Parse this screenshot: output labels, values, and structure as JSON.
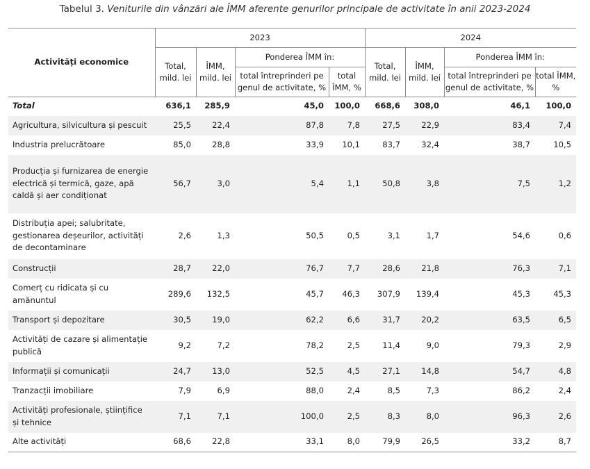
{
  "caption": {
    "prefix": "Tabelul 3. ",
    "title": "Veniturile din vânzări ale ÎMM aferente genurilor principale de activitate în anii 2023-2024"
  },
  "header": {
    "activity": "Activități economice",
    "year1": "2023",
    "year2": "2024",
    "total": "Total, mild. lei",
    "imm": "ÎMM, mild. lei",
    "share": "Ponderea ÎMM în:",
    "share_total_ent": "total întreprinderi pe genul de activitate, %",
    "share_total_imm": "total ÎMM, %"
  },
  "rows": [
    {
      "name": "Total",
      "v": [
        "636,1",
        "285,9",
        "45,0",
        "100,0",
        "668,6",
        "308,0",
        "46,1",
        "100,0"
      ]
    },
    {
      "name": "Agricultura, silvicultura și pescuit",
      "v": [
        "25,5",
        "22,4",
        "87,8",
        "7,8",
        "27,5",
        "22,9",
        "83,4",
        "7,4"
      ]
    },
    {
      "name": "Industria prelucrătoare",
      "v": [
        "85,0",
        "28,8",
        "33,9",
        "10,1",
        "83,7",
        "32,4",
        "38,7",
        "10,5"
      ]
    },
    {
      "name": "Producția și furnizarea de energie electrică și termică, gaze, apă caldă și aer condiționat",
      "v": [
        "56,7",
        "3,0",
        "5,4",
        "1,1",
        "50,8",
        "3,8",
        "7,5",
        "1,2"
      ]
    },
    {
      "name": "Distribuția apei; salubritate, gestionarea deșeurilor, activități de decontaminare",
      "v": [
        "2,6",
        "1,3",
        "50,5",
        "0,5",
        "3,1",
        "1,7",
        "54,6",
        "0,6"
      ]
    },
    {
      "name": "Construcții",
      "v": [
        "28,7",
        "22,0",
        "76,7",
        "7,7",
        "28,6",
        "21,8",
        "76,3",
        "7,1"
      ]
    },
    {
      "name": "Comerț cu ridicata și cu amănuntul",
      "v": [
        "289,6",
        "132,5",
        "45,7",
        "46,3",
        "307,9",
        "139,4",
        "45,3",
        "45,3"
      ]
    },
    {
      "name": "Transport și depozitare",
      "v": [
        "30,5",
        "19,0",
        "62,2",
        "6,6",
        "31,7",
        "20,2",
        "63,5",
        "6,5"
      ]
    },
    {
      "name": "Activități de cazare și alimentație publică",
      "v": [
        "9,2",
        "7,2",
        "78,2",
        "2,5",
        "11,4",
        "9,0",
        "79,3",
        "2,9"
      ]
    },
    {
      "name": "Informații și comunicații",
      "v": [
        "24,7",
        "13,0",
        "52,5",
        "4,5",
        "27,1",
        "14,8",
        "54,7",
        "4,8"
      ]
    },
    {
      "name": "Tranzacții imobiliare",
      "v": [
        "7,9",
        "6,9",
        "88,0",
        "2,4",
        "8,5",
        "7,3",
        "86,2",
        "2,4"
      ]
    },
    {
      "name": "Activități profesionale, științifice și tehnice",
      "v": [
        "7,1",
        "7,1",
        "100,0",
        "2,5",
        "8,3",
        "8,0",
        "96,3",
        "2,6"
      ]
    },
    {
      "name": "Alte activități",
      "v": [
        "68,6",
        "22,8",
        "33,1",
        "8,0",
        "79,9",
        "26,5",
        "33,2",
        "8,7"
      ]
    }
  ]
}
